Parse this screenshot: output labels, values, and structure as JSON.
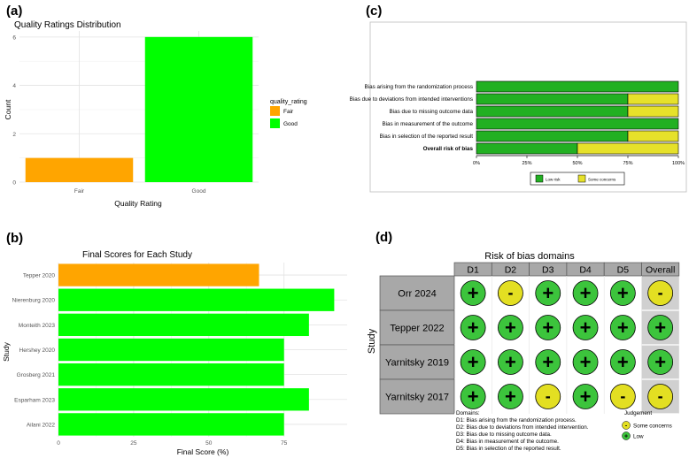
{
  "panel_labels": {
    "a": "(a)",
    "b": "(b)",
    "c": "(c)",
    "d": "(d)"
  },
  "colors": {
    "fair": "#FFA500",
    "good": "#00FF00",
    "low": "#22b022",
    "some": "#e6e12a",
    "low_sym": "#3cc43c",
    "some_sym": "#e3df22",
    "overall_bg": "#d0d0d0",
    "header_bg": "#a8a8a8"
  },
  "chart_data": [
    {
      "id": "a",
      "type": "bar",
      "title": "Quality Ratings Distribution",
      "xlabel": "Quality Rating",
      "ylabel": "Count",
      "categories": [
        "Fair",
        "Good"
      ],
      "values": [
        1,
        6
      ],
      "ylim": [
        0,
        6.25
      ],
      "yticks": [
        0,
        2,
        4,
        6
      ],
      "legend": {
        "title": "quality_rating",
        "entries": [
          "Fair",
          "Good"
        ],
        "placement": "right"
      }
    },
    {
      "id": "b",
      "type": "bar",
      "orientation": "horizontal",
      "title": "Final Scores for Each Study",
      "xlabel": "Final Score (%)",
      "ylabel": "Study",
      "categories": [
        "Tepper 2020",
        "Nierenburg 2020",
        "Monteith 2023",
        "Hershey 2020",
        "Grosberg 2021",
        "Esparham 2023",
        "Ailani 2022"
      ],
      "values": [
        66.7,
        91.7,
        83.3,
        75,
        75,
        83.3,
        75
      ],
      "rating": [
        "Fair",
        "Good",
        "Good",
        "Good",
        "Good",
        "Good",
        "Good"
      ],
      "xlim": [
        0,
        96
      ],
      "xticks": [
        "0",
        "25",
        "50",
        "75"
      ],
      "xtick_values": [
        0,
        25,
        50,
        75
      ]
    },
    {
      "id": "c",
      "type": "bar",
      "orientation": "horizontal-stacked",
      "categories": [
        "Bias arising from the randomization process",
        "Bias due to deviations from intended interventions",
        "Bias due to missing outcome data",
        "Bias in measurement of the outcome",
        "Bias in selection of the reported result",
        "Overall risk of bias"
      ],
      "series": [
        {
          "name": "Low risk",
          "values": [
            100,
            75,
            75,
            100,
            75,
            50
          ]
        },
        {
          "name": "Some concerns",
          "values": [
            0,
            25,
            25,
            0,
            25,
            50
          ]
        }
      ],
      "xticks": [
        "0%",
        "25%",
        "50%",
        "75%",
        "100%"
      ],
      "xtick_values": [
        0,
        25,
        50,
        75,
        100
      ],
      "legend": {
        "entries": [
          "Low risk",
          "Some concerns"
        ],
        "placement": "bottom"
      }
    },
    {
      "id": "d",
      "type": "table",
      "title": "Risk of bias domains",
      "ylabel": "Study",
      "columns": [
        "D1",
        "D2",
        "D3",
        "D4",
        "D5",
        "Overall"
      ],
      "rows": [
        {
          "study": "Orr 2024",
          "judgements": [
            "+",
            "-",
            "+",
            "+",
            "+",
            "-"
          ]
        },
        {
          "study": "Tepper 2022",
          "judgements": [
            "+",
            "+",
            "+",
            "+",
            "+",
            "+"
          ]
        },
        {
          "study": "Yarnitsky 2019",
          "judgements": [
            "+",
            "+",
            "+",
            "+",
            "+",
            "+"
          ]
        },
        {
          "study": "Yarnitsky 2017",
          "judgements": [
            "+",
            "+",
            "-",
            "+",
            "-",
            "-"
          ]
        }
      ],
      "domains_title": "Domains:",
      "domains": [
        "D1: Bias arising from the randomization process.",
        "D2: Bias due to deviations from intended intervention.",
        "D3: Bias due to missing outcome data.",
        "D4: Bias in measurement of the outcome.",
        "D5: Bias in selection of the reported result."
      ],
      "judgement_title": "Judgement",
      "judgement_legend": [
        {
          "symbol": "-",
          "label": "Some concerns"
        },
        {
          "symbol": "+",
          "label": "Low"
        }
      ]
    }
  ]
}
